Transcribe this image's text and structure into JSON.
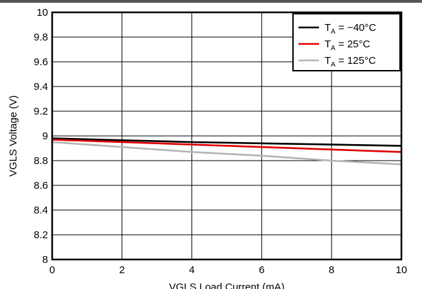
{
  "chart_data": {
    "type": "line",
    "title": "",
    "xlabel": "VGLS Load Current (mA)",
    "ylabel": "VGLS Voltage (V)",
    "xlim": [
      0,
      10
    ],
    "ylim": [
      8,
      10
    ],
    "xticks": [
      0,
      2,
      4,
      6,
      8,
      10
    ],
    "yticks": [
      8,
      8.2,
      8.4,
      8.6,
      8.8,
      9,
      9.2,
      9.4,
      9.6,
      9.8,
      10
    ],
    "xtick_labels": [
      "0",
      "2",
      "4",
      "6",
      "8",
      "10"
    ],
    "ytick_labels": [
      "8",
      "8.2",
      "8.4",
      "8.6",
      "8.8",
      "9",
      "9.2",
      "9.4",
      "9.6",
      "9.8",
      "10"
    ],
    "grid": true,
    "legend_position": "top-right",
    "series": [
      {
        "name": "T",
        "sub": "A",
        "suffix": " = −40°C",
        "color": "#000000",
        "x": [
          0,
          2,
          4,
          6,
          8,
          10
        ],
        "y": [
          8.98,
          8.965,
          8.95,
          8.94,
          8.93,
          8.92
        ]
      },
      {
        "name": "T",
        "sub": "A",
        "suffix": " = 25°C",
        "color": "#e00000",
        "x": [
          0,
          2,
          4,
          6,
          8,
          10
        ],
        "y": [
          8.97,
          8.95,
          8.93,
          8.91,
          8.89,
          8.87
        ]
      },
      {
        "name": "T",
        "sub": "A",
        "suffix": " = 125°C",
        "color": "#b4b4b4",
        "x": [
          0,
          2,
          4,
          6,
          8,
          10
        ],
        "y": [
          8.95,
          8.91,
          8.87,
          8.84,
          8.8,
          8.77
        ]
      }
    ]
  }
}
